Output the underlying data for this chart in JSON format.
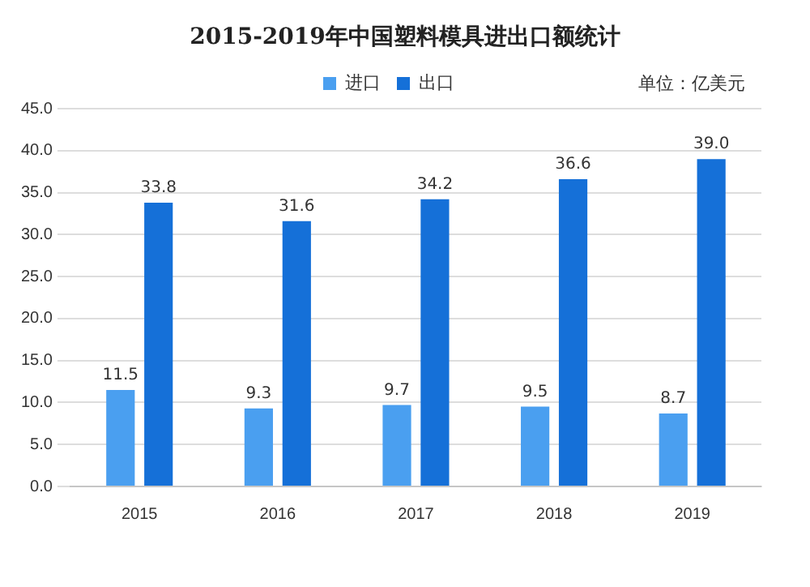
{
  "chart_data": {
    "type": "bar",
    "title": "2015-2019年中国塑料模具进出口额统计",
    "annotations": [
      "单位：亿美元"
    ],
    "categories": [
      "2015",
      "2016",
      "2017",
      "2018",
      "2019"
    ],
    "series": [
      {
        "name": "进口",
        "color": "#4a9ff0",
        "values": [
          11.5,
          9.3,
          9.7,
          9.5,
          8.7
        ],
        "value_labels": [
          "11.5",
          "9.3",
          "9.7",
          "9.5",
          "8.7"
        ]
      },
      {
        "name": "出口",
        "color": "#1570d8",
        "values": [
          33.8,
          31.6,
          34.2,
          36.6,
          39.0
        ],
        "value_labels": [
          "33.8",
          "31.6",
          "34.2",
          "36.6",
          "39.0"
        ]
      }
    ],
    "ylim": [
      0,
      45
    ],
    "yticks": [
      {
        "value": 0,
        "label": "0.0"
      },
      {
        "value": 5,
        "label": "5.0"
      },
      {
        "value": 10,
        "label": "10.0"
      },
      {
        "value": 15,
        "label": "15.0"
      },
      {
        "value": 20,
        "label": "20.0"
      },
      {
        "value": 25,
        "label": "25.0"
      },
      {
        "value": 30,
        "label": "30.0"
      },
      {
        "value": 35,
        "label": "35.0"
      },
      {
        "value": 40,
        "label": "40.0"
      },
      {
        "value": 45,
        "label": "45.0"
      }
    ],
    "grid": "y",
    "legend": "top"
  }
}
